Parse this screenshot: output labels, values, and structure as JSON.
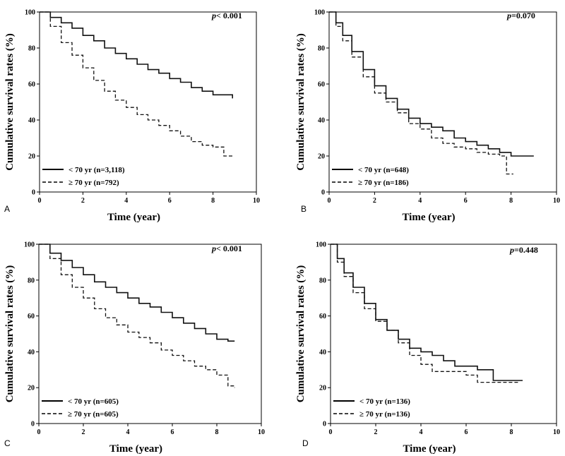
{
  "figure": {
    "panels": [
      "A",
      "B",
      "C",
      "D"
    ]
  },
  "chart_data": [
    {
      "type": "line",
      "panel": "A",
      "title": "",
      "xlabel": "Time (year)",
      "ylabel": "Cumulative survival rates (%)",
      "xlim": [
        0,
        10
      ],
      "ylim": [
        0,
        100
      ],
      "xticks": [
        "0",
        "2",
        "4",
        "6",
        "8",
        "10"
      ],
      "yticks": [
        "0",
        "20",
        "40",
        "60",
        "80",
        "100"
      ],
      "p_prefix": "p",
      "p_value": "< 0.001",
      "legend_position": "bottom-left",
      "series": [
        {
          "name": "< 70 yr (n=3,118)",
          "style": "solid",
          "x": [
            0,
            0.5,
            1,
            1.5,
            2,
            2.5,
            3,
            3.5,
            4,
            4.5,
            5,
            5.5,
            6,
            6.5,
            7,
            7.5,
            8,
            8.5,
            8.9
          ],
          "y": [
            100,
            97,
            94,
            91,
            87,
            84,
            80,
            77,
            74,
            71,
            68,
            66,
            63,
            61,
            58,
            56,
            54,
            54,
            52
          ]
        },
        {
          "name": "≥ 70 yr (n=792)",
          "style": "dashed",
          "x": [
            0,
            0.5,
            1,
            1.5,
            2,
            2.5,
            3,
            3.5,
            4,
            4.5,
            5,
            5.5,
            6,
            6.5,
            7,
            7.5,
            8,
            8.5,
            8.9
          ],
          "y": [
            100,
            92,
            83,
            76,
            69,
            62,
            56,
            51,
            47,
            43,
            40,
            37,
            34,
            31,
            28,
            26,
            25,
            20,
            20
          ]
        }
      ]
    },
    {
      "type": "line",
      "panel": "B",
      "title": "",
      "xlabel": "Time (year)",
      "ylabel": "Cumulative survival rates (%)",
      "xlim": [
        0,
        10
      ],
      "ylim": [
        0,
        100
      ],
      "xticks": [
        "0",
        "2",
        "4",
        "6",
        "8",
        "10"
      ],
      "yticks": [
        "0",
        "20",
        "40",
        "60",
        "80",
        "100"
      ],
      "p_prefix": "p",
      "p_value": "=0.070",
      "legend_position": "bottom-left",
      "series": [
        {
          "name": "< 70 yr (n=648)",
          "style": "solid",
          "x": [
            0,
            0.3,
            0.6,
            1,
            1.5,
            2,
            2.5,
            3,
            3.5,
            4,
            4.5,
            5,
            5.5,
            6,
            6.5,
            7,
            7.5,
            8,
            8.5,
            9
          ],
          "y": [
            100,
            94,
            87,
            78,
            68,
            59,
            52,
            46,
            41,
            38,
            36,
            34,
            30,
            28,
            26,
            24,
            22,
            20,
            20,
            20
          ]
        },
        {
          "name": "≥ 70 yr (n=186)",
          "style": "dashed",
          "x": [
            0,
            0.3,
            0.6,
            1,
            1.5,
            2,
            2.5,
            3,
            3.5,
            4,
            4.5,
            5,
            5.5,
            6,
            6.5,
            7,
            7.5,
            7.8,
            7.8,
            8.1
          ],
          "y": [
            100,
            92,
            84,
            75,
            64,
            55,
            50,
            44,
            38,
            35,
            30,
            27,
            25,
            24,
            22,
            21,
            20,
            20,
            10,
            10
          ]
        }
      ]
    },
    {
      "type": "line",
      "panel": "C",
      "title": "",
      "xlabel": "Time (year)",
      "ylabel": "Cumulative survival rates (%)",
      "xlim": [
        0,
        10
      ],
      "ylim": [
        0,
        100
      ],
      "xticks": [
        "0",
        "2",
        "4",
        "6",
        "8",
        "10"
      ],
      "yticks": [
        "0",
        "20",
        "40",
        "60",
        "80",
        "100"
      ],
      "p_prefix": "p",
      "p_value": "< 0.001",
      "legend_position": "bottom-left",
      "series": [
        {
          "name": "< 70 yr (n=605)",
          "style": "solid",
          "x": [
            0,
            0.5,
            1,
            1.5,
            2,
            2.5,
            3,
            3.5,
            4,
            4.5,
            5,
            5.5,
            6,
            6.5,
            7,
            7.5,
            8,
            8.5,
            8.8
          ],
          "y": [
            100,
            95,
            91,
            87,
            83,
            79,
            76,
            73,
            70,
            67,
            65,
            62,
            59,
            56,
            53,
            50,
            47,
            46,
            46
          ]
        },
        {
          "name": "≥ 70 yr (n=605)",
          "style": "dashed",
          "x": [
            0,
            0.5,
            1,
            1.5,
            2,
            2.5,
            3,
            3.5,
            4,
            4.5,
            5,
            5.5,
            6,
            6.5,
            7,
            7.5,
            8,
            8.5,
            8.8
          ],
          "y": [
            100,
            92,
            83,
            76,
            70,
            64,
            59,
            55,
            51,
            48,
            45,
            41,
            38,
            35,
            32,
            30,
            27,
            21,
            20
          ]
        }
      ]
    },
    {
      "type": "line",
      "panel": "D",
      "title": "",
      "xlabel": "Time (year)",
      "ylabel": "Cumulative survival rates (%)",
      "xlim": [
        0,
        10
      ],
      "ylim": [
        0,
        100
      ],
      "xticks": [
        "0",
        "2",
        "4",
        "6",
        "8",
        "10"
      ],
      "yticks": [
        "0",
        "20",
        "40",
        "60",
        "80",
        "100"
      ],
      "p_prefix": "p",
      "p_value": "=0.448",
      "legend_position": "bottom-left",
      "series": [
        {
          "name": "< 70 yr (n=136)",
          "style": "solid",
          "x": [
            0,
            0.3,
            0.6,
            1,
            1.5,
            2,
            2.5,
            3,
            3.5,
            4,
            4.5,
            5,
            5.5,
            6,
            6.5,
            7,
            7.2,
            7.5,
            8,
            8.5
          ],
          "y": [
            100,
            92,
            84,
            76,
            67,
            58,
            52,
            47,
            42,
            40,
            38,
            35,
            32,
            32,
            30,
            30,
            24,
            24,
            24,
            24
          ]
        },
        {
          "name": "≥ 70 yr (n=136)",
          "style": "dashed",
          "x": [
            0,
            0.3,
            0.6,
            1,
            1.5,
            2,
            2.5,
            3,
            3.5,
            4,
            4.5,
            5,
            5.5,
            6,
            6.5,
            7,
            7.5,
            8,
            8.3
          ],
          "y": [
            100,
            90,
            82,
            73,
            64,
            57,
            52,
            45,
            38,
            33,
            29,
            29,
            29,
            27,
            23,
            23,
            23,
            23,
            23
          ]
        }
      ]
    }
  ]
}
